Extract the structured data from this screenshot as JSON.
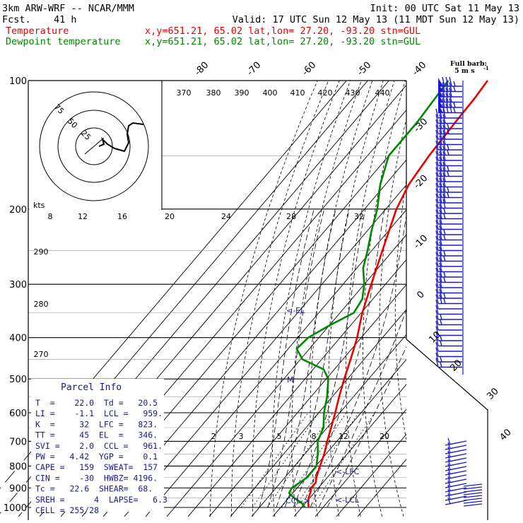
{
  "header": {
    "model": "3km ARW-WRF -- NCAR/MMM",
    "fcst_label": "Fcst.",
    "fcst_value": "41 h",
    "init": "Init: 00 UTC Sat 11 May 13",
    "valid": "Valid: 17 UTC Sun 12 May 13 (11 MDT Sun 12 May 13)",
    "temperature_label": "Temperature",
    "dewpoint_label": "Dewpoint temperature",
    "location_info": "x,y=651.21, 65.02   lat,lon= 27.20, -93.20   stn=GUL"
  },
  "colors": {
    "temperature": "#ee0000",
    "dewpoint": "#008800",
    "annotation": "#1a1a8c",
    "wind_barb": "#1a1acc",
    "mixing_ratio": "#000000",
    "grid": "#000000"
  },
  "barb_legend": {
    "title": "Full barb:",
    "value": "5 m s",
    "superscript": "-1"
  },
  "parcel_info": {
    "title": "Parcel Info",
    "rows": [
      "T  =    22.0  Td =   20.5",
      "LI =    -1.1  LCL =   959.",
      "K  =     32  LFC =   823.",
      "TT =     45  EL  =   346.",
      "SVI =    2.0  CCL =   961.",
      "PW =   4.42  YGP =    0.1",
      "CAPE =   159  SWEAT=  157",
      "CIN =    -30  HWBZ= 4196.",
      "Tc =   22.6  SHEAR=  68.",
      "SREH =      4  LAPSE=   6.3",
      "CELL = 255/28"
    ]
  },
  "hodograph": {
    "units": "kts",
    "ring_labels": [
      "75",
      "50",
      "25"
    ]
  },
  "chart_data": {
    "type": "line",
    "title": "",
    "pressure_levels": [
      "100",
      "200",
      "300",
      "400",
      "500",
      "600",
      "700",
      "800",
      "900",
      "1000"
    ],
    "isotherm_labels": [
      "-80",
      "-70",
      "-60",
      "-50",
      "-40",
      "-30",
      "-20",
      "-10",
      "0",
      "10",
      "20",
      "30",
      "40"
    ],
    "theta_labels_top": [
      "370",
      "380",
      "390",
      "400",
      "410",
      "420",
      "430",
      "440"
    ],
    "theta_e_labels": [
      "8",
      "12",
      "16",
      "20",
      "24",
      "28",
      "32"
    ],
    "left_theta_labels": [
      "290",
      "280",
      "270"
    ],
    "mixing_ratio_labels": [
      "2",
      "3",
      "5",
      "8",
      "12",
      "20"
    ],
    "series": [
      {
        "name": "Temperature",
        "points": [
          [
            1000,
            23.2
          ],
          [
            975,
            21.2
          ],
          [
            950,
            19.4
          ],
          [
            925,
            18.2
          ],
          [
            900,
            16.6
          ],
          [
            875,
            16.6
          ],
          [
            850,
            14.8
          ],
          [
            800,
            12.0
          ],
          [
            750,
            9.2
          ],
          [
            700,
            5.5
          ],
          [
            650,
            1.8
          ],
          [
            600,
            -2.2
          ],
          [
            550,
            -6.8
          ],
          [
            500,
            -11.5
          ],
          [
            450,
            -16.3
          ],
          [
            400,
            -22.0
          ],
          [
            350,
            -29.5
          ],
          [
            300,
            -36.7
          ],
          [
            250,
            -45.0
          ],
          [
            200,
            -55.0
          ],
          [
            175,
            -59.0
          ],
          [
            150,
            -61.0
          ],
          [
            125,
            -62.0
          ],
          [
            110,
            -62.5
          ],
          [
            100,
            -63.5
          ]
        ]
      },
      {
        "name": "Dewpoint temperature",
        "points": [
          [
            1000,
            21.5
          ],
          [
            975,
            18.0
          ],
          [
            950,
            12.5
          ],
          [
            925,
            8.2
          ],
          [
            900,
            7.5
          ],
          [
            850,
            10.5
          ],
          [
            800,
            10.3
          ],
          [
            750,
            6.2
          ],
          [
            700,
            1.0
          ],
          [
            650,
            -1.8
          ],
          [
            600,
            -7.5
          ],
          [
            550,
            -12.5
          ],
          [
            500,
            -19.0
          ],
          [
            475,
            -25.0
          ],
          [
            450,
            -39.0
          ],
          [
            425,
            -46.0
          ],
          [
            400,
            -45.0
          ],
          [
            375,
            -40.0
          ],
          [
            350,
            -33.5
          ],
          [
            325,
            -35.0
          ],
          [
            300,
            -40.0
          ],
          [
            275,
            -47.0
          ],
          [
            250,
            -52.0
          ],
          [
            225,
            -58.0
          ],
          [
            200,
            -64.0
          ],
          [
            175,
            -72.5
          ],
          [
            150,
            -80.0
          ],
          [
            125,
            -80.0
          ],
          [
            100,
            -82.0
          ]
        ]
      }
    ],
    "levels_marked": [
      {
        "label": "LCL",
        "pressure": 959
      },
      {
        "label": "LFC",
        "pressure": 823
      },
      {
        "label": "EL",
        "pressure": 346
      },
      {
        "label": "CCL",
        "pressure": 961
      },
      {
        "label": "M",
        "pressure": 500
      }
    ]
  }
}
